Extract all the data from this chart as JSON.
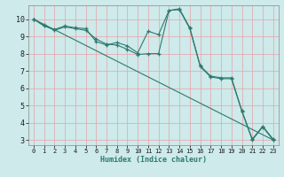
{
  "xlabel": "Humidex (Indice chaleur)",
  "bg_color": "#ceeaea",
  "grid_color": "#e8a0a8",
  "line_color": "#2d7a6e",
  "xlim": [
    -0.5,
    23.5
  ],
  "ylim": [
    2.7,
    10.8
  ],
  "yticks": [
    3,
    4,
    5,
    6,
    7,
    8,
    9,
    10
  ],
  "xticks": [
    0,
    1,
    2,
    3,
    4,
    5,
    6,
    7,
    8,
    9,
    10,
    11,
    12,
    13,
    14,
    15,
    16,
    17,
    18,
    19,
    20,
    21,
    22,
    23
  ],
  "line1_x": [
    0,
    1,
    2,
    3,
    4,
    5,
    6,
    7,
    8,
    9,
    10,
    11,
    12,
    13,
    14,
    15,
    16,
    17,
    18,
    19,
    20,
    21,
    22,
    23
  ],
  "line1_y": [
    10.0,
    9.6,
    9.4,
    9.6,
    9.5,
    9.45,
    8.7,
    8.5,
    8.65,
    8.45,
    8.05,
    9.3,
    9.1,
    10.5,
    10.6,
    9.5,
    7.3,
    6.7,
    6.6,
    6.6,
    4.7,
    3.05,
    3.8,
    3.05
  ],
  "line2_x": [
    0,
    1,
    2,
    3,
    4,
    5,
    6,
    7,
    8,
    9,
    10,
    11,
    12,
    13,
    14,
    15,
    16,
    17,
    18,
    19,
    20,
    21,
    22,
    23
  ],
  "line2_y": [
    10.0,
    9.65,
    9.35,
    9.55,
    9.45,
    9.35,
    8.85,
    8.55,
    8.5,
    8.25,
    7.95,
    8.0,
    8.0,
    10.5,
    10.55,
    9.45,
    7.25,
    6.65,
    6.55,
    6.55,
    4.65,
    3.0,
    3.75,
    3.0
  ],
  "line3_x": [
    0,
    23
  ],
  "line3_y": [
    10.0,
    3.0
  ]
}
